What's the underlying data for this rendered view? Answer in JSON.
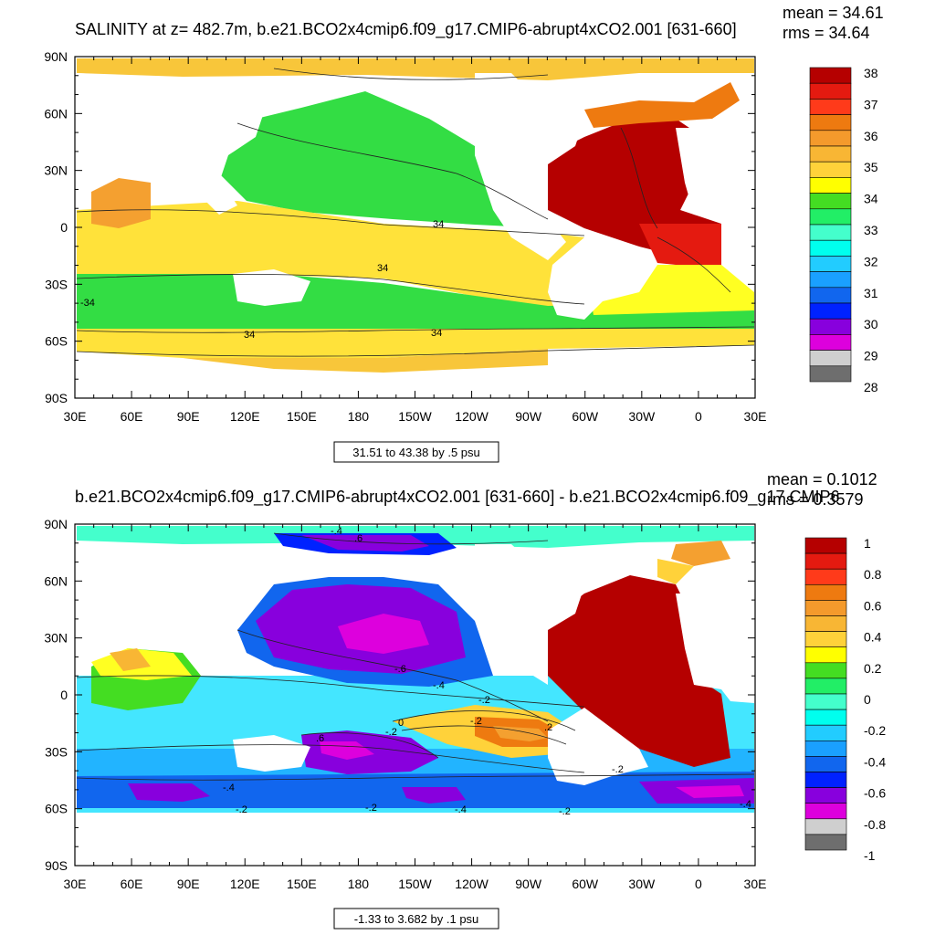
{
  "panels": [
    {
      "title": "SALINITY at z= 482.7m, b.e21.BCO2x4cmip6.f09_g17.CMIP6-abrupt4xCO2.001 [631-660]",
      "mean_label": "mean = 34.61",
      "rms_label": "rms = 34.64",
      "lat_labels": [
        "90N",
        "60N",
        "30N",
        "0",
        "30S",
        "60S",
        "90S"
      ],
      "lon_labels": [
        "30E",
        "60E",
        "90E",
        "120E",
        "150E",
        "180",
        "150W",
        "120W",
        "90W",
        "60W",
        "30W",
        "0",
        "30E"
      ],
      "contour_info": "31.51 to 43.38 by .5 psu",
      "contour_labels": [
        "34",
        "34",
        "-34",
        "34",
        "34"
      ],
      "colorbar_labels": [
        "38",
        "37",
        "36",
        "35",
        "34",
        "33",
        "32",
        "31",
        "30",
        "29",
        "28"
      ],
      "colorbar_colors": [
        "#b50000",
        "#e41a10",
        "#ff3a1a",
        "#ee7a10",
        "#f49a2c",
        "#f8b634",
        "#ffd23a",
        "#ffff00",
        "#44dd22",
        "#22ee66",
        "#44ffcc",
        "#00ffee",
        "#22ccff",
        "#1aa0ff",
        "#1166ee",
        "#0022ff",
        "#8800dd",
        "#dd00dd",
        "#cfcfcf",
        "#6e6e6e"
      ]
    },
    {
      "title": "b.e21.BCO2x4cmip6.f09_g17.CMIP6-abrupt4xCO2.001 [631-660] - b.e21.BCO2x4cmip6.f09_g17.CMIP6",
      "mean_label": "mean = 0.1012",
      "rms_label": "rms = 0.3579",
      "lat_labels": [
        "90N",
        "60N",
        "30N",
        "0",
        "30S",
        "60S",
        "90S"
      ],
      "lon_labels": [
        "30E",
        "60E",
        "90E",
        "120E",
        "150E",
        "180",
        "150W",
        "120W",
        "90W",
        "60W",
        "30W",
        "0",
        "30E"
      ],
      "contour_info": "-1.33 to 3.682 by .1 psu",
      "contour_labels": [
        "-.4",
        ".6",
        "-.6",
        "-.4",
        "-.2",
        "0",
        "-.2",
        "-.2",
        "-.2",
        ".2",
        "-.4",
        "-.2",
        "-.2",
        "-.4",
        "-.2",
        ".6",
        "-.4"
      ],
      "colorbar_labels": [
        "1",
        "0.8",
        "0.6",
        "0.4",
        "0.2",
        "0",
        "-0.2",
        "-0.4",
        "-0.6",
        "-0.8",
        "-1"
      ],
      "colorbar_colors": [
        "#b50000",
        "#e41a10",
        "#ff3a1a",
        "#ee7a10",
        "#f49a2c",
        "#f8b634",
        "#ffd23a",
        "#ffff00",
        "#44dd22",
        "#22ee66",
        "#44ffcc",
        "#00ffee",
        "#22ccff",
        "#1aa0ff",
        "#1166ee",
        "#0022ff",
        "#8800dd",
        "#dd00dd",
        "#cfcfcf",
        "#6e6e6e"
      ]
    }
  ]
}
